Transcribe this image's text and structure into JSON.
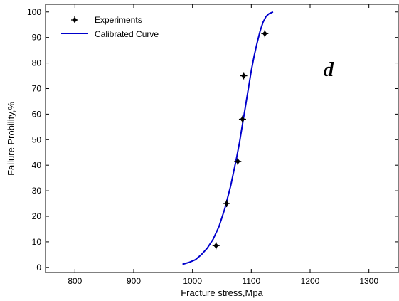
{
  "chart_data": {
    "type": "scatter",
    "xlabel": "Fracture stress,Mpa",
    "ylabel": "Failure Probility,%",
    "xlim": [
      750,
      1350
    ],
    "ylim": [
      -2,
      103
    ],
    "xticks": [
      800,
      900,
      1000,
      1100,
      1200,
      1300
    ],
    "yticks": [
      0,
      10,
      20,
      30,
      40,
      50,
      60,
      70,
      80,
      90,
      100
    ],
    "grid": false,
    "legend_position": "top-left",
    "annotation": "d",
    "series": [
      {
        "name": "Experiments",
        "kind": "points",
        "color": "#000000",
        "marker": "plus-diamond",
        "points": [
          [
            1040,
            8.5
          ],
          [
            1058,
            25
          ],
          [
            1077,
            41.5
          ],
          [
            1085,
            58
          ],
          [
            1087,
            75
          ],
          [
            1123,
            91.5
          ]
        ]
      },
      {
        "name": "Calibrated Curve",
        "kind": "line",
        "color": "#0000cc",
        "points": [
          [
            983,
            1.2
          ],
          [
            995,
            2
          ],
          [
            1005,
            3
          ],
          [
            1015,
            5
          ],
          [
            1025,
            7.5
          ],
          [
            1035,
            11
          ],
          [
            1045,
            16
          ],
          [
            1055,
            23
          ],
          [
            1065,
            32
          ],
          [
            1075,
            43
          ],
          [
            1080,
            49
          ],
          [
            1085,
            56
          ],
          [
            1090,
            63
          ],
          [
            1095,
            70
          ],
          [
            1100,
            77
          ],
          [
            1105,
            83
          ],
          [
            1110,
            88
          ],
          [
            1115,
            92.5
          ],
          [
            1120,
            96
          ],
          [
            1125,
            98.2
          ],
          [
            1130,
            99.3
          ],
          [
            1137,
            100
          ]
        ]
      }
    ]
  }
}
